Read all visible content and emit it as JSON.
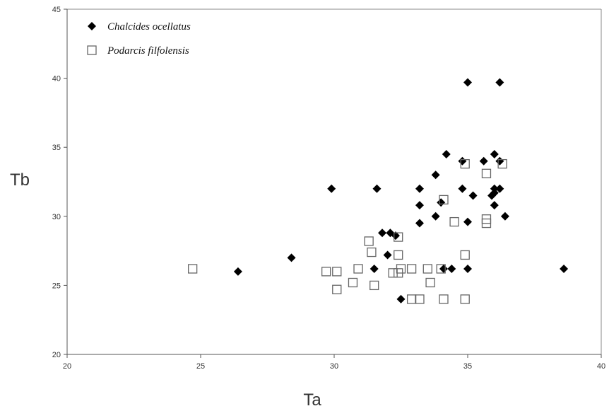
{
  "chart_data": {
    "type": "scatter",
    "xlabel": "Ta",
    "ylabel": "Tb",
    "xlim": [
      20,
      40
    ],
    "ylim": [
      20,
      45
    ],
    "xticks": [
      "20",
      "25",
      "30",
      "35",
      "40"
    ],
    "yticks": [
      "20",
      "25",
      "30",
      "35",
      "40",
      "45"
    ],
    "grid": false,
    "legend_position": "top-left",
    "series": [
      {
        "name": "Chalcides ocellatus",
        "marker": "diamond",
        "color": "#000000",
        "points": [
          [
            26.4,
            26.0
          ],
          [
            28.4,
            27.0
          ],
          [
            29.9,
            32.0
          ],
          [
            31.5,
            26.2
          ],
          [
            31.6,
            32.0
          ],
          [
            31.8,
            28.8
          ],
          [
            32.0,
            27.2
          ],
          [
            32.1,
            28.8
          ],
          [
            32.3,
            28.6
          ],
          [
            32.5,
            24.0
          ],
          [
            33.2,
            32.0
          ],
          [
            33.2,
            30.8
          ],
          [
            33.2,
            29.5
          ],
          [
            33.8,
            33.0
          ],
          [
            33.8,
            30.0
          ],
          [
            34.0,
            31.0
          ],
          [
            34.1,
            26.2
          ],
          [
            34.2,
            34.5
          ],
          [
            34.4,
            26.2
          ],
          [
            34.8,
            34.0
          ],
          [
            34.8,
            32.0
          ],
          [
            35.0,
            39.7
          ],
          [
            35.0,
            29.6
          ],
          [
            35.0,
            26.2
          ],
          [
            35.2,
            31.5
          ],
          [
            35.6,
            34.0
          ],
          [
            35.9,
            31.5
          ],
          [
            36.0,
            34.5
          ],
          [
            36.0,
            32.0
          ],
          [
            36.0,
            31.7
          ],
          [
            36.0,
            30.8
          ],
          [
            36.2,
            39.7
          ],
          [
            36.2,
            32.0
          ],
          [
            36.2,
            34.0
          ],
          [
            36.4,
            30.0
          ],
          [
            38.6,
            26.2
          ]
        ]
      },
      {
        "name": "Podarcis filfolensis",
        "marker": "square",
        "color": "#666666",
        "points": [
          [
            24.7,
            26.2
          ],
          [
            29.7,
            26.0
          ],
          [
            30.1,
            24.7
          ],
          [
            30.1,
            26.0
          ],
          [
            30.7,
            25.2
          ],
          [
            30.9,
            26.2
          ],
          [
            31.3,
            28.2
          ],
          [
            31.4,
            27.4
          ],
          [
            31.5,
            25.0
          ],
          [
            32.2,
            25.9
          ],
          [
            32.4,
            28.5
          ],
          [
            32.4,
            27.2
          ],
          [
            32.4,
            25.9
          ],
          [
            32.5,
            26.2
          ],
          [
            32.9,
            24.0
          ],
          [
            32.9,
            26.2
          ],
          [
            33.2,
            24.0
          ],
          [
            33.5,
            26.2
          ],
          [
            33.6,
            25.2
          ],
          [
            34.0,
            26.2
          ],
          [
            34.1,
            31.2
          ],
          [
            34.1,
            24.0
          ],
          [
            34.5,
            29.6
          ],
          [
            34.9,
            33.8
          ],
          [
            34.9,
            27.2
          ],
          [
            34.9,
            24.0
          ],
          [
            35.7,
            33.1
          ],
          [
            35.7,
            29.8
          ],
          [
            35.7,
            29.5
          ],
          [
            36.3,
            33.8
          ]
        ]
      }
    ]
  }
}
